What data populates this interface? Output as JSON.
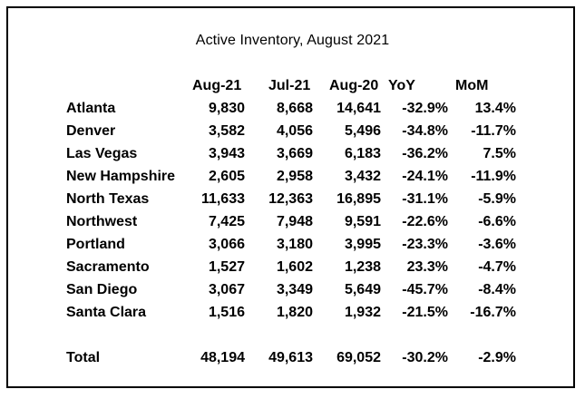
{
  "title": "Active Inventory, August 2021",
  "headers": [
    "Aug-21",
    "Jul-21",
    "Aug-20",
    "YoY",
    "MoM"
  ],
  "rows": [
    {
      "name": "Atlanta",
      "aug21": "9,830",
      "jul21": "8,668",
      "aug20": "14,641",
      "yoy": "-32.9%",
      "mom": "13.4%"
    },
    {
      "name": "Denver",
      "aug21": "3,582",
      "jul21": "4,056",
      "aug20": "5,496",
      "yoy": "-34.8%",
      "mom": "-11.7%"
    },
    {
      "name": "Las Vegas",
      "aug21": "3,943",
      "jul21": "3,669",
      "aug20": "6,183",
      "yoy": "-36.2%",
      "mom": "7.5%"
    },
    {
      "name": "New Hampshire",
      "aug21": "2,605",
      "jul21": "2,958",
      "aug20": "3,432",
      "yoy": "-24.1%",
      "mom": "-11.9%"
    },
    {
      "name": "North Texas",
      "aug21": "11,633",
      "jul21": "12,363",
      "aug20": "16,895",
      "yoy": "-31.1%",
      "mom": "-5.9%"
    },
    {
      "name": "Northwest",
      "aug21": "7,425",
      "jul21": "7,948",
      "aug20": "9,591",
      "yoy": "-22.6%",
      "mom": "-6.6%"
    },
    {
      "name": "Portland",
      "aug21": "3,066",
      "jul21": "3,180",
      "aug20": "3,995",
      "yoy": "-23.3%",
      "mom": "-3.6%"
    },
    {
      "name": "Sacramento",
      "aug21": "1,527",
      "jul21": "1,602",
      "aug20": "1,238",
      "yoy": "23.3%",
      "mom": "-4.7%"
    },
    {
      "name": "San Diego",
      "aug21": "3,067",
      "jul21": "3,349",
      "aug20": "5,649",
      "yoy": "-45.7%",
      "mom": "-8.4%"
    },
    {
      "name": "Santa Clara",
      "aug21": "1,516",
      "jul21": "1,820",
      "aug20": "1,932",
      "yoy": "-21.5%",
      "mom": "-16.7%"
    }
  ],
  "total": {
    "name": "Total",
    "aug21": "48,194",
    "jul21": "49,613",
    "aug20": "69,052",
    "yoy": "-30.2%",
    "mom": "-2.9%"
  }
}
